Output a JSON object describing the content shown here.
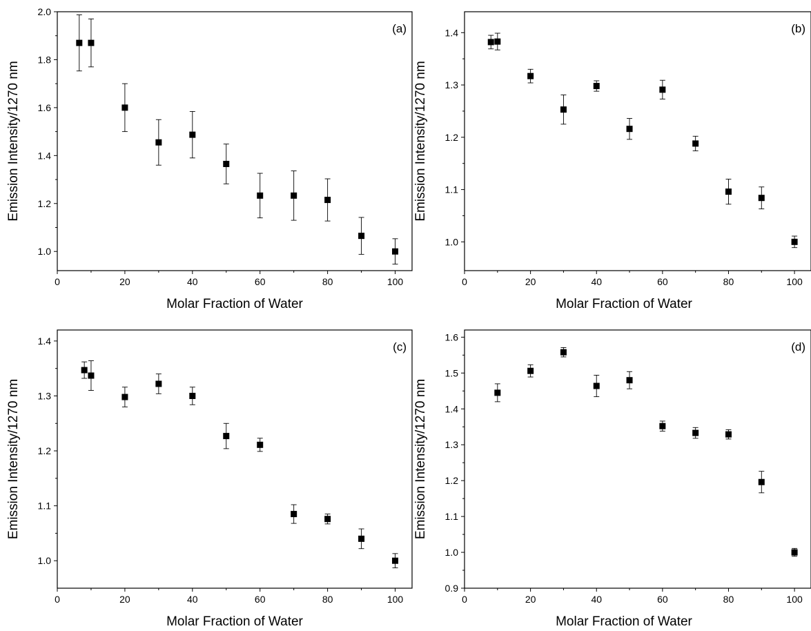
{
  "chart_data": [
    {
      "type": "scatter",
      "panel_label": "(a)",
      "xlabel": "Molar Fraction of Water",
      "ylabel": "Emission Intensity/1270 nm",
      "xlim": [
        0,
        105
      ],
      "ylim": [
        0.92,
        2.0
      ],
      "xticks": [
        0,
        20,
        40,
        60,
        80,
        100
      ],
      "yticks": [
        1.0,
        1.2,
        1.4,
        1.6,
        1.8,
        2.0
      ],
      "ytick_decimals": 1,
      "grid": false,
      "points": [
        {
          "x": 6.5,
          "y": 1.87,
          "err": 0.117
        },
        {
          "x": 10,
          "y": 1.87,
          "err": 0.1
        },
        {
          "x": 20,
          "y": 1.6,
          "err": 0.1
        },
        {
          "x": 30,
          "y": 1.455,
          "err": 0.095
        },
        {
          "x": 40,
          "y": 1.487,
          "err": 0.097
        },
        {
          "x": 50,
          "y": 1.365,
          "err": 0.083
        },
        {
          "x": 60,
          "y": 1.233,
          "err": 0.093
        },
        {
          "x": 70,
          "y": 1.233,
          "err": 0.103
        },
        {
          "x": 80,
          "y": 1.215,
          "err": 0.088
        },
        {
          "x": 90,
          "y": 1.065,
          "err": 0.077
        },
        {
          "x": 100,
          "y": 1.0,
          "err": 0.053
        }
      ]
    },
    {
      "type": "scatter",
      "panel_label": "(b)",
      "xlabel": "Molar Fraction of Water",
      "ylabel": "Emission Intensity/1270 nm",
      "xlim": [
        0,
        105
      ],
      "ylim": [
        0.945,
        1.44
      ],
      "xticks": [
        0,
        20,
        40,
        60,
        80,
        100
      ],
      "yticks": [
        1.0,
        1.1,
        1.2,
        1.3,
        1.4
      ],
      "ytick_decimals": 1,
      "grid": false,
      "points": [
        {
          "x": 8,
          "y": 1.382,
          "err": 0.013
        },
        {
          "x": 10,
          "y": 1.383,
          "err": 0.016
        },
        {
          "x": 20,
          "y": 1.317,
          "err": 0.013
        },
        {
          "x": 30,
          "y": 1.253,
          "err": 0.028
        },
        {
          "x": 40,
          "y": 1.298,
          "err": 0.01
        },
        {
          "x": 50,
          "y": 1.216,
          "err": 0.02
        },
        {
          "x": 60,
          "y": 1.291,
          "err": 0.018
        },
        {
          "x": 70,
          "y": 1.188,
          "err": 0.014
        },
        {
          "x": 80,
          "y": 1.096,
          "err": 0.024
        },
        {
          "x": 90,
          "y": 1.084,
          "err": 0.021
        },
        {
          "x": 100,
          "y": 1.0,
          "err": 0.011
        }
      ]
    },
    {
      "type": "scatter",
      "panel_label": "(c)",
      "xlabel": "Molar Fraction of Water",
      "ylabel": "Emission Intensity/1270 nm",
      "xlim": [
        0,
        105
      ],
      "ylim": [
        0.95,
        1.42
      ],
      "xticks": [
        0,
        20,
        40,
        60,
        80,
        100
      ],
      "yticks": [
        1.0,
        1.1,
        1.2,
        1.3,
        1.4
      ],
      "ytick_decimals": 1,
      "grid": false,
      "points": [
        {
          "x": 8,
          "y": 1.347,
          "err": 0.015
        },
        {
          "x": 10,
          "y": 1.337,
          "err": 0.027
        },
        {
          "x": 20,
          "y": 1.298,
          "err": 0.018
        },
        {
          "x": 30,
          "y": 1.322,
          "err": 0.018
        },
        {
          "x": 40,
          "y": 1.3,
          "err": 0.016
        },
        {
          "x": 50,
          "y": 1.227,
          "err": 0.023
        },
        {
          "x": 60,
          "y": 1.211,
          "err": 0.012
        },
        {
          "x": 70,
          "y": 1.085,
          "err": 0.017
        },
        {
          "x": 80,
          "y": 1.076,
          "err": 0.009
        },
        {
          "x": 90,
          "y": 1.04,
          "err": 0.018
        },
        {
          "x": 100,
          "y": 1.0,
          "err": 0.013
        }
      ]
    },
    {
      "type": "scatter",
      "panel_label": "(d)",
      "xlabel": "Molar Fraction of Water",
      "ylabel": "Emission Intensity/1270 nm",
      "xlim": [
        0,
        105
      ],
      "ylim": [
        0.9,
        1.62
      ],
      "xticks": [
        0,
        20,
        40,
        60,
        80,
        100
      ],
      "yticks": [
        0.9,
        1.0,
        1.1,
        1.2,
        1.3,
        1.4,
        1.5,
        1.6
      ],
      "ytick_decimals": 1,
      "grid": false,
      "points": [
        {
          "x": 10,
          "y": 1.445,
          "err": 0.025
        },
        {
          "x": 20,
          "y": 1.506,
          "err": 0.017
        },
        {
          "x": 30,
          "y": 1.558,
          "err": 0.013
        },
        {
          "x": 40,
          "y": 1.464,
          "err": 0.03
        },
        {
          "x": 50,
          "y": 1.48,
          "err": 0.024
        },
        {
          "x": 60,
          "y": 1.352,
          "err": 0.014
        },
        {
          "x": 70,
          "y": 1.333,
          "err": 0.015
        },
        {
          "x": 80,
          "y": 1.329,
          "err": 0.013
        },
        {
          "x": 90,
          "y": 1.196,
          "err": 0.03
        },
        {
          "x": 100,
          "y": 1.0,
          "err": 0.011
        }
      ]
    }
  ]
}
